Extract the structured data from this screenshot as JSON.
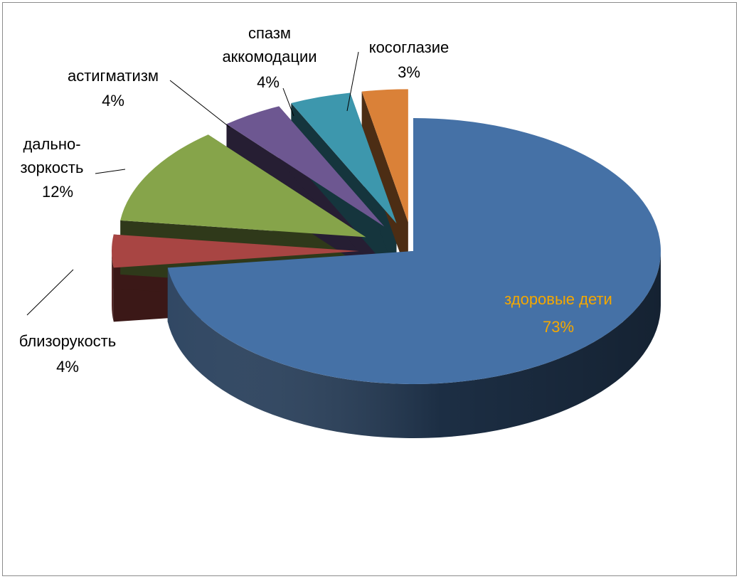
{
  "chart_data": {
    "type": "pie",
    "style": "exploded-3d",
    "title": "",
    "legend": "none",
    "slices": [
      {
        "label": "здоровые дети",
        "value": 73,
        "value_label": "73%",
        "color": "#4571a6",
        "label_color": "#f5a800"
      },
      {
        "label": "близорукость",
        "value": 4,
        "value_label": "4%",
        "color": "#a84543",
        "label_color": "#000000"
      },
      {
        "label_lines": [
          "дально-",
          "зоркость"
        ],
        "value": 12,
        "value_label": "12%",
        "color": "#86a44a",
        "label_color": "#000000"
      },
      {
        "label": "астигматизм",
        "value": 4,
        "value_label": "4%",
        "color": "#6d5791",
        "label_color": "#000000"
      },
      {
        "label_lines": [
          "спазм",
          "аккомодации"
        ],
        "value": 4,
        "value_label": "4%",
        "color": "#3d97ad",
        "label_color": "#000000"
      },
      {
        "label": "косоглазие",
        "value": 3,
        "value_label": "3%",
        "color": "#da8138",
        "label_color": "#000000"
      }
    ]
  }
}
